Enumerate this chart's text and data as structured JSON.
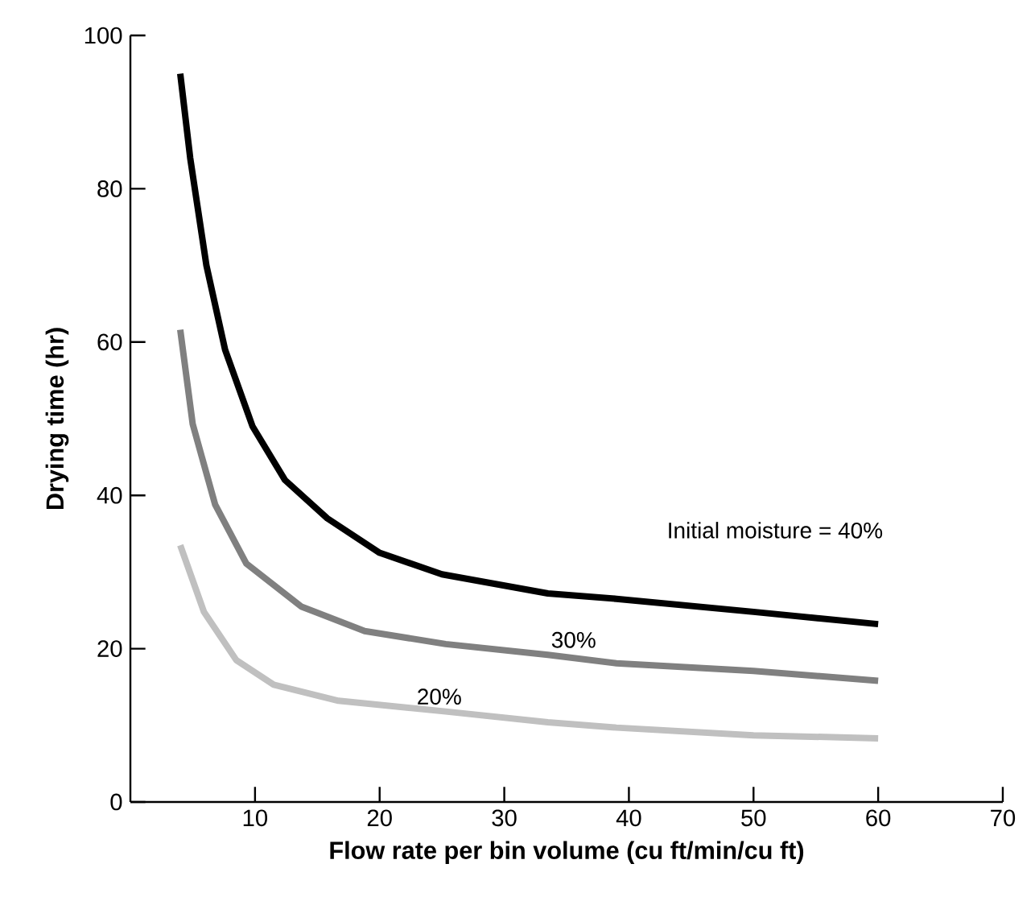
{
  "chart_data": {
    "type": "line",
    "xlabel": "Flow rate per bin volume (cu ft/min/cu ft)",
    "ylabel": "Drying time (hr)",
    "xlim": [
      0,
      70
    ],
    "ylim": [
      0,
      100
    ],
    "xticks": [
      10,
      20,
      30,
      40,
      50,
      60,
      70
    ],
    "yticks": [
      0,
      20,
      40,
      60,
      80,
      100
    ],
    "grid": false,
    "legend": false,
    "marker": "none",
    "line_style": "solid",
    "series": [
      {
        "name": "Initial moisture = 40%",
        "color": "#000000",
        "x": [
          4,
          4.8,
          6.1,
          7.6,
          9.8,
          12.4,
          15.8,
          20,
          25,
          33.5,
          39,
          50,
          60
        ],
        "values": [
          95,
          84,
          70,
          59,
          49,
          42,
          37,
          32.5,
          29.7,
          27.2,
          26.5,
          24.8,
          23.2
        ]
      },
      {
        "name": "30%",
        "color": "#808080",
        "x": [
          4,
          5,
          6.8,
          9.3,
          13.7,
          18.8,
          25.3,
          33.5,
          39,
          50,
          60
        ],
        "values": [
          61.6,
          49.3,
          38.8,
          31.1,
          25.5,
          22.3,
          20.6,
          19.2,
          18.1,
          17.1,
          15.8
        ]
      },
      {
        "name": "20%",
        "color": "#c0c0c0",
        "x": [
          4,
          5.9,
          8.5,
          11.5,
          16.7,
          25.3,
          33.5,
          39,
          50,
          60
        ],
        "values": [
          33.5,
          24.8,
          18.5,
          15.3,
          13.2,
          11.8,
          10.4,
          9.7,
          8.7,
          8.3
        ]
      }
    ]
  }
}
